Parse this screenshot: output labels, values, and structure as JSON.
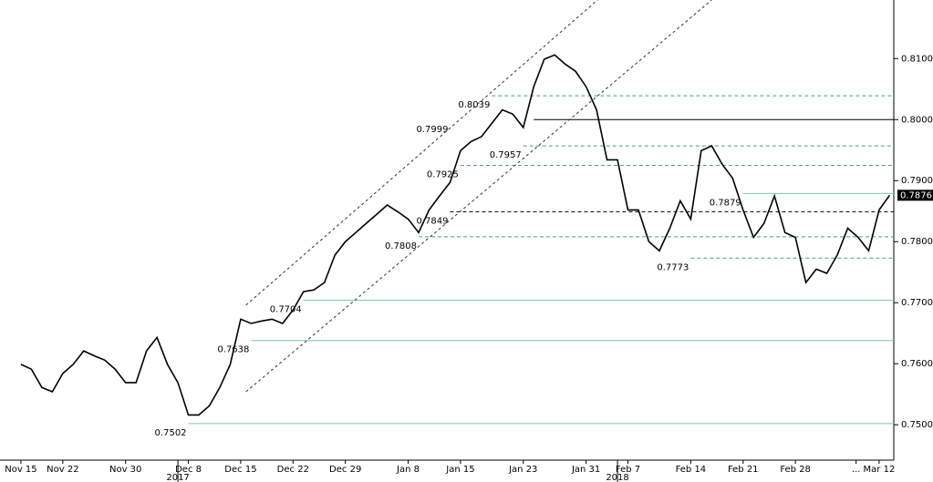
{
  "chart_data": {
    "type": "line",
    "series": [
      {
        "color": "#000000",
        "x": [
          0,
          1,
          2,
          3,
          4,
          5,
          6,
          7,
          8,
          9,
          10,
          11,
          12,
          13,
          14,
          15,
          16,
          17,
          18,
          19,
          20,
          21,
          22,
          23,
          24,
          25,
          26,
          27,
          28,
          29,
          30,
          31,
          32,
          33,
          34,
          35,
          36,
          37,
          38,
          39,
          40,
          41,
          42,
          43,
          44,
          45,
          46,
          47,
          48,
          49,
          50,
          51,
          52,
          53,
          54,
          55,
          56,
          57,
          58,
          59,
          60,
          61,
          62,
          63,
          64,
          65,
          66,
          67,
          68,
          69,
          70,
          71,
          72,
          73,
          74,
          75,
          76,
          77,
          78,
          79,
          80,
          81,
          82,
          83
        ],
        "values": [
          0.7599,
          0.7591,
          0.7561,
          0.7554,
          0.7584,
          0.7599,
          0.7621,
          0.7613,
          0.7606,
          0.7591,
          0.7569,
          0.7569,
          0.7621,
          0.7643,
          0.7599,
          0.7569,
          0.7516,
          0.7516,
          0.7531,
          0.7561,
          0.7599,
          0.7673,
          0.7666,
          0.767,
          0.7673,
          0.7666,
          0.7688,
          0.7718,
          0.7721,
          0.7733,
          0.7778,
          0.78,
          0.7815,
          0.783,
          0.7845,
          0.786,
          0.7849,
          0.7837,
          0.7815,
          0.7852,
          0.7875,
          0.7897,
          0.7949,
          0.7964,
          0.7972,
          0.7994,
          0.8016,
          0.8009,
          0.7987,
          0.8054,
          0.8099,
          0.8106,
          0.8091,
          0.8079,
          0.8054,
          0.8016,
          0.7934,
          0.7934,
          0.7852,
          0.7852,
          0.78,
          0.7785,
          0.7822,
          0.7867,
          0.7837,
          0.7949,
          0.7957,
          0.7927,
          0.7904,
          0.7852,
          0.7807,
          0.783,
          0.7875,
          0.7815,
          0.7807,
          0.7733,
          0.7755,
          0.7748,
          0.7778,
          0.7822,
          0.7807,
          0.7785,
          0.7852,
          0.7876
        ]
      }
    ],
    "last_value": 0.7876,
    "levels": [
      {
        "value": 0.7502,
        "x": 16,
        "style": "solid",
        "color": "#7cc9a2"
      },
      {
        "value": 0.7638,
        "x": 22,
        "style": "solid",
        "color": "#7cc9a2"
      },
      {
        "value": 0.7704,
        "x": 27,
        "style": "solid",
        "color": "#7cc9a2"
      },
      {
        "value": 0.7773,
        "x": 64,
        "style": "dashed",
        "color": "#4f9f7c"
      },
      {
        "value": 0.7808,
        "x": 38,
        "style": "dashed",
        "color": "#4f9f7c"
      },
      {
        "value": 0.7849,
        "x": 41,
        "style": "dashed",
        "color": "#000000"
      },
      {
        "value": 0.7879,
        "x": 69,
        "style": "solid",
        "color": "#7cc9a2"
      },
      {
        "value": 0.7925,
        "x": 42,
        "style": "dashed",
        "color": "#4f9f7c"
      },
      {
        "value": 0.7957,
        "x": 48,
        "style": "dashed",
        "color": "#4f9f7c"
      },
      {
        "value": 0.7999,
        "x": 41,
        "style": "none",
        "color": "#000000"
      },
      {
        "value": 0.8039,
        "x": 45,
        "style": "dashed",
        "color": "#4f9f7c"
      }
    ],
    "reference_line": {
      "value": 0.8,
      "x": 49,
      "color": "#000000"
    },
    "trendlines": [
      {
        "x": [
          21.5,
          55.1
        ],
        "y": [
          0.7696,
          0.8196
        ]
      },
      {
        "x": [
          21.5,
          66
        ],
        "y": [
          0.7554,
          0.8196
        ]
      }
    ],
    "xlim": [
      -2,
      83.4
    ],
    "ylim": [
      0.7442,
      0.8196
    ],
    "yticks": [
      {
        "value": 0.75,
        "label": "0.7500"
      },
      {
        "value": 0.76,
        "label": "0.7600"
      },
      {
        "value": 0.77,
        "label": "0.7700"
      },
      {
        "value": 0.78,
        "label": "0.7800"
      },
      {
        "value": 0.79,
        "label": "0.7900"
      },
      {
        "value": 0.8,
        "label": "0.8000"
      },
      {
        "value": 0.81,
        "label": "0.8100"
      }
    ],
    "xticks": [
      {
        "value": 0,
        "label": "Nov 15"
      },
      {
        "value": 4,
        "label": "Nov 22"
      },
      {
        "value": 10,
        "label": "Nov 30"
      },
      {
        "value": 16,
        "label": "Dec 8"
      },
      {
        "value": 21,
        "label": "Dec 15"
      },
      {
        "value": 26,
        "label": "Dec 22"
      },
      {
        "value": 31,
        "label": "Dec 29"
      },
      {
        "value": 37,
        "label": "Jan 8"
      },
      {
        "value": 42,
        "label": "Jan 15"
      },
      {
        "value": 48,
        "label": "Jan 23"
      },
      {
        "value": 54,
        "label": "Jan 31"
      },
      {
        "value": 58,
        "label": "Feb 7"
      },
      {
        "value": 64,
        "label": "Feb 14"
      },
      {
        "value": 69,
        "label": "Feb 21"
      },
      {
        "value": 74,
        "label": "Feb 28"
      },
      {
        "value": 79.8,
        "label": "..."
      },
      {
        "value": 82,
        "label": "Mar 12"
      }
    ],
    "year_ticks": [
      {
        "value": 15,
        "label": "2017"
      },
      {
        "value": 57,
        "label": "2018"
      }
    ]
  }
}
